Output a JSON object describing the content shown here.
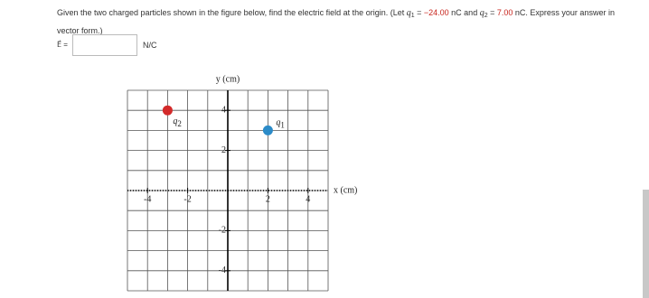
{
  "question": {
    "segments": [
      "Given the two charged particles shown in the figure below, find the electric field at the origin. (Let ",
      "q",
      "1",
      " = ",
      "−24.00",
      " nC and ",
      "q",
      "2",
      " = ",
      "7.00",
      " nC. Express your answer in vector form.)"
    ],
    "styles": [
      "plain",
      "var",
      "sub",
      "plain",
      "red",
      "plain",
      "var",
      "sub",
      "plain",
      "red",
      "plain"
    ]
  },
  "answer": {
    "label": "E⃗ =",
    "unit": "N/C"
  },
  "figure": {
    "y_label": "y (cm)",
    "x_label": "x (cm)",
    "xlim": [
      -5,
      5
    ],
    "ylim": [
      -5,
      5
    ],
    "xticks": [
      -4,
      -2,
      2,
      4
    ],
    "yticks": [
      4,
      2,
      -2,
      -4
    ],
    "gridlines": [
      -5,
      -4,
      -3,
      -2,
      -1,
      0,
      1,
      2,
      3,
      4,
      5
    ],
    "particles": [
      {
        "label": "q",
        "sub": "2",
        "x": -3,
        "y": 4,
        "color": "#d32a2a"
      },
      {
        "label": "q",
        "sub": "1",
        "x": 2,
        "y": 3,
        "color": "#2b8bc8"
      }
    ]
  }
}
